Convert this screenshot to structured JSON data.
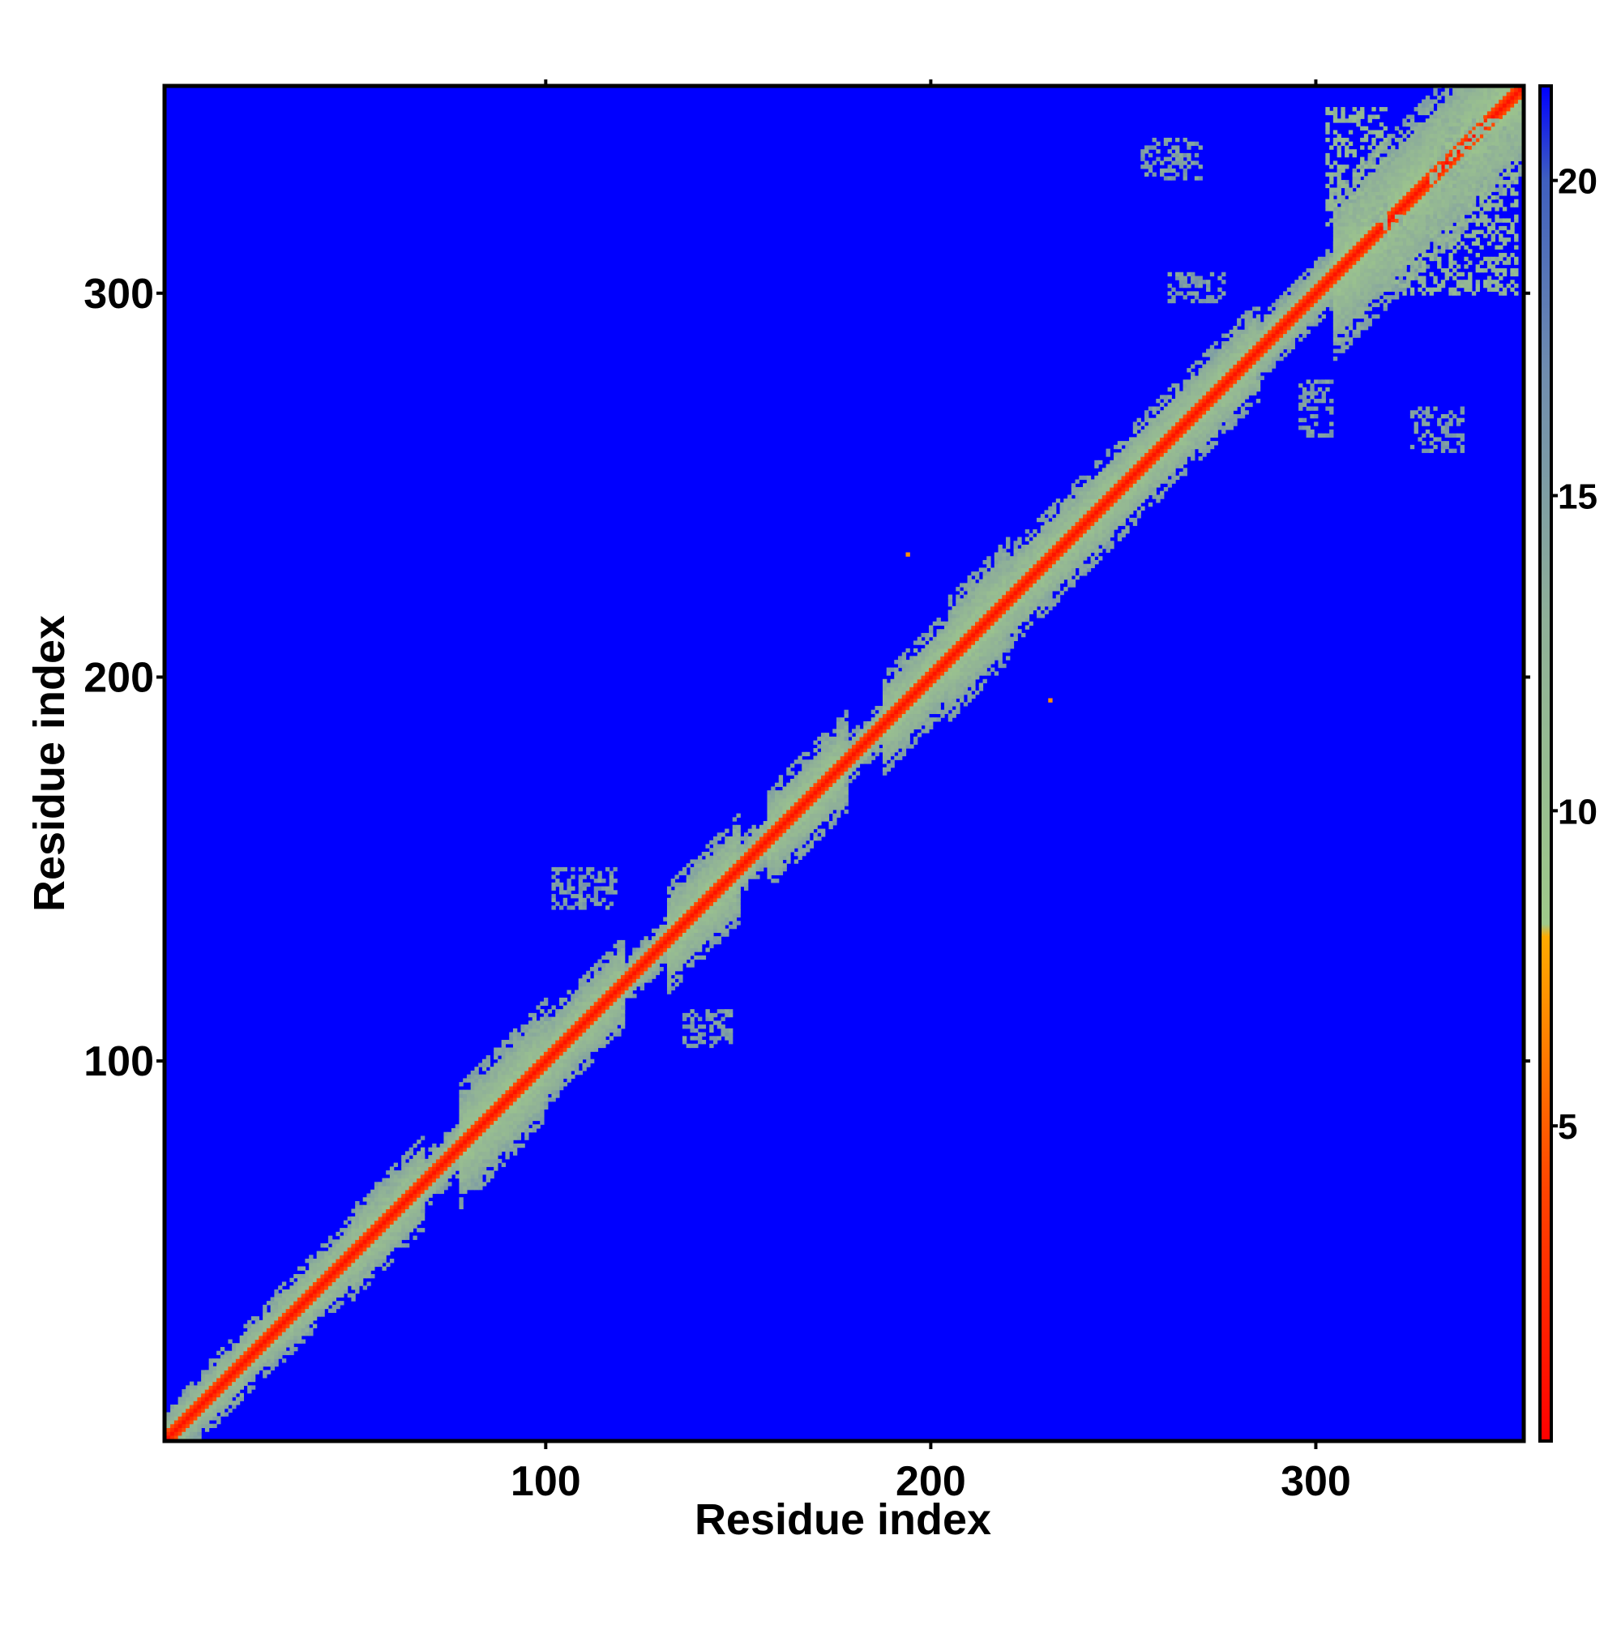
{
  "chart_data": {
    "type": "heatmap",
    "title": "",
    "xlabel": "Residue index",
    "ylabel": "Residue index",
    "xlim": [
      1,
      354
    ],
    "ylim": [
      1,
      354
    ],
    "x_ticks": [
      100,
      200,
      300
    ],
    "y_ticks": [
      100,
      200,
      300
    ],
    "grid": false,
    "colorbar": {
      "range": [
        0,
        21.5
      ],
      "ticks": [
        5,
        10,
        15,
        20
      ],
      "stops": [
        {
          "value": 0,
          "color": "#ff0000"
        },
        {
          "value": 4,
          "color": "#ff4400"
        },
        {
          "value": 8,
          "color": "#ffaa00"
        },
        {
          "value": 8.2,
          "color": "#9fc98a"
        },
        {
          "value": 13,
          "color": "#8fb098"
        },
        {
          "value": 17,
          "color": "#6f8caf"
        },
        {
          "value": 20,
          "color": "#3f5fbf"
        },
        {
          "value": 21.5,
          "color": "#0000ff"
        }
      ]
    },
    "background_value": 21.5,
    "background_color": "#0000ff",
    "matrix_description": "symmetric residue-residue distance map; values near 0 on the diagonal, banded contacts along diagonal, off-diagonal contact patches",
    "diagonal_band": {
      "core_halfwidth": 2,
      "segments": [
        {
          "start": 1,
          "end": 12,
          "halfwidth": 8
        },
        {
          "start": 12,
          "end": 30,
          "halfwidth": 9
        },
        {
          "start": 30,
          "end": 50,
          "halfwidth": 10
        },
        {
          "start": 50,
          "end": 68,
          "halfwidth": 12
        },
        {
          "start": 68,
          "end": 78,
          "halfwidth": 7
        },
        {
          "start": 78,
          "end": 100,
          "halfwidth": 16
        },
        {
          "start": 100,
          "end": 120,
          "halfwidth": 12
        },
        {
          "start": 120,
          "end": 132,
          "halfwidth": 6
        },
        {
          "start": 132,
          "end": 150,
          "halfwidth": 14
        },
        {
          "start": 150,
          "end": 158,
          "halfwidth": 7
        },
        {
          "start": 158,
          "end": 178,
          "halfwidth": 13
        },
        {
          "start": 178,
          "end": 188,
          "halfwidth": 6
        },
        {
          "start": 188,
          "end": 205,
          "halfwidth": 13
        },
        {
          "start": 205,
          "end": 220,
          "halfwidth": 16
        },
        {
          "start": 220,
          "end": 285,
          "halfwidth": 13
        },
        {
          "start": 285,
          "end": 305,
          "halfwidth": 8
        },
        {
          "start": 305,
          "end": 354,
          "halfwidth": 22
        }
      ]
    },
    "contact_patches": [
      {
        "x": [
          102,
          118
        ],
        "y": [
          140,
          150
        ],
        "value": 15
      },
      {
        "x": [
          136,
          148
        ],
        "y": [
          104,
          113
        ],
        "value": 15
      },
      {
        "x": [
          255,
          270
        ],
        "y": [
          330,
          340
        ],
        "value": 15
      },
      {
        "x": [
          262,
          276
        ],
        "y": [
          298,
          305
        ],
        "value": 15
      },
      {
        "x": [
          296,
          304
        ],
        "y": [
          263,
          277
        ],
        "value": 15
      },
      {
        "x": [
          325,
          338
        ],
        "y": [
          259,
          270
        ],
        "value": 15
      },
      {
        "x": [
          303,
          318
        ],
        "y": [
          318,
          348
        ],
        "value": 12
      },
      {
        "x": [
          318,
          352
        ],
        "y": [
          300,
          320
        ],
        "value": 12
      },
      {
        "x": [
          330,
          352
        ],
        "y": [
          322,
          345
        ],
        "value": 12
      }
    ],
    "isolated_points": [
      {
        "x": 194,
        "y": 232,
        "value": 7
      },
      {
        "x": 231,
        "y": 194,
        "value": 7
      }
    ]
  }
}
